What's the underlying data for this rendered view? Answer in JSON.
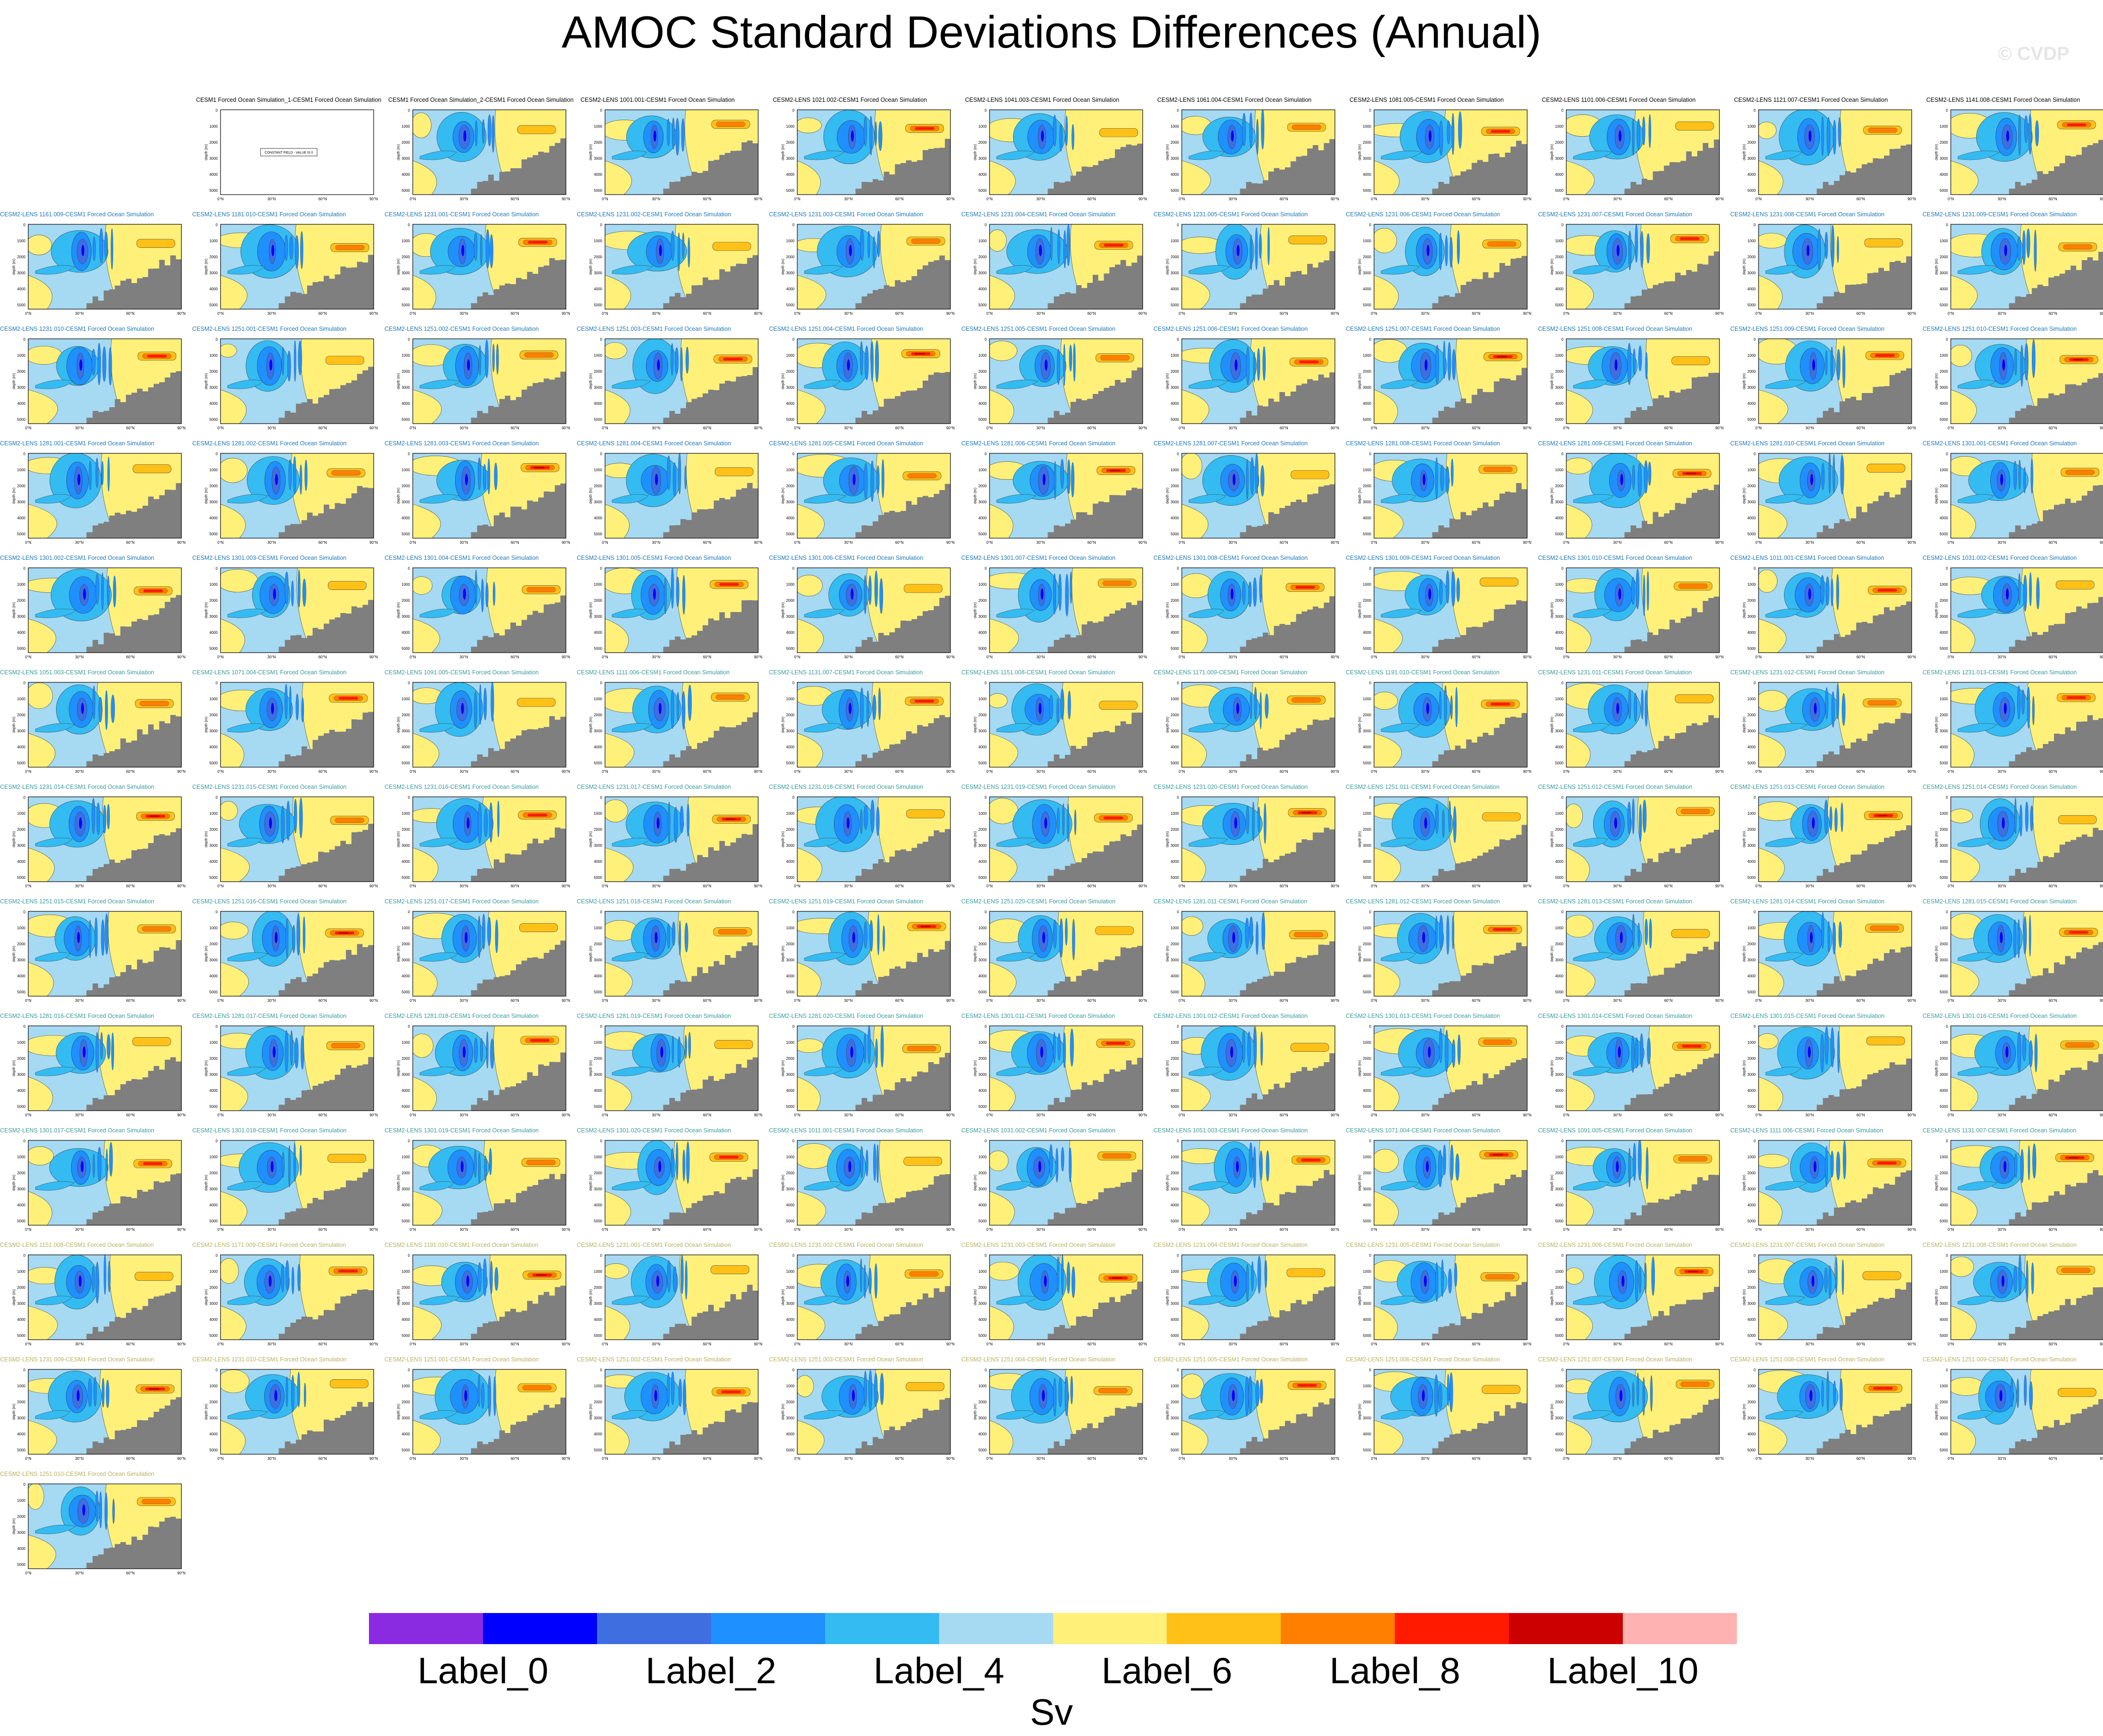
{
  "title": "AMOC Standard Deviations Differences (Annual)",
  "watermark": "© CVDP",
  "units": "Sv",
  "chart_data": {
    "type": "heatmap",
    "title": "AMOC Standard Deviations Differences (Annual)",
    "colorbar": {
      "units": "Sv",
      "colors": [
        "#8a2be2",
        "#0000ff",
        "#3e6ee0",
        "#1e90ff",
        "#33bbf2",
        "#a6d9f2",
        "#fff07a",
        "#ffc118",
        "#ff7f00",
        "#ff1a00",
        "#cc0000",
        "#ffb2b2"
      ],
      "labels": [
        {
          "text": "Label_0",
          "boundary": 1
        },
        {
          "text": "Label_2",
          "boundary": 3
        },
        {
          "text": "Label_4",
          "boundary": 5
        },
        {
          "text": "Label_6",
          "boundary": 7
        },
        {
          "text": "Label_8",
          "boundary": 9
        },
        {
          "text": "Label_10",
          "boundary": 11
        }
      ]
    },
    "panel_axes": {
      "ylabel": "depth (m)",
      "yticks": [
        "0",
        "1000",
        "2000",
        "3000",
        "4000",
        "5000"
      ],
      "xticks": [
        "0°N",
        "30°N",
        "60°N",
        "90°N"
      ]
    },
    "constant_panel_text": "CONSTANT FIELD - VALUE IS 0",
    "panels": [
      "",
      "CESM1 Forced Ocean Simulation_1-CESM1 Forced Ocean Simulation",
      "CESM1 Forced Ocean Simulation_2-CESM1 Forced Ocean Simulation",
      "CESM2-LENS 1001.001-CESM1 Forced Ocean Simulation",
      "CESM2-LENS 1021.002-CESM1 Forced Ocean Simulation",
      "CESM2-LENS 1041.003-CESM1 Forced Ocean Simulation",
      "CESM2-LENS 1061.004-CESM1 Forced Ocean Simulation",
      "CESM2-LENS 1081.005-CESM1 Forced Ocean Simulation",
      "CESM2-LENS 1101.006-CESM1 Forced Ocean Simulation",
      "CESM2-LENS 1121.007-CESM1 Forced Ocean Simulation",
      "CESM2-LENS 1141.008-CESM1 Forced Ocean Simulation",
      "CESM2-LENS 1161.009-CESM1 Forced Ocean Simulation",
      "CESM2-LENS 1181.010-CESM1 Forced Ocean Simulation",
      "CESM2-LENS 1231.001-CESM1 Forced Ocean Simulation",
      "CESM2-LENS 1231.002-CESM1 Forced Ocean Simulation",
      "CESM2-LENS 1231.003-CESM1 Forced Ocean Simulation",
      "CESM2-LENS 1231.004-CESM1 Forced Ocean Simulation",
      "CESM2-LENS 1231.005-CESM1 Forced Ocean Simulation",
      "CESM2-LENS 1231.006-CESM1 Forced Ocean Simulation",
      "CESM2-LENS 1231.007-CESM1 Forced Ocean Simulation",
      "CESM2-LENS 1231.008-CESM1 Forced Ocean Simulation",
      "CESM2-LENS 1231.009-CESM1 Forced Ocean Simulation",
      "CESM2-LENS 1231.010-CESM1 Forced Ocean Simulation",
      "CESM2-LENS 1251.001-CESM1 Forced Ocean Simulation",
      "CESM2-LENS 1251.002-CESM1 Forced Ocean Simulation",
      "CESM2-LENS 1251.003-CESM1 Forced Ocean Simulation",
      "CESM2-LENS 1251.004-CESM1 Forced Ocean Simulation",
      "CESM2-LENS 1251.005-CESM1 Forced Ocean Simulation",
      "CESM2-LENS 1251.006-CESM1 Forced Ocean Simulation",
      "CESM2-LENS 1251.007-CESM1 Forced Ocean Simulation",
      "CESM2-LENS 1251.008-CESM1 Forced Ocean Simulation",
      "CESM2-LENS 1251.009-CESM1 Forced Ocean Simulation",
      "CESM2-LENS 1251.010-CESM1 Forced Ocean Simulation",
      "CESM2-LENS 1281.001-CESM1 Forced Ocean Simulation",
      "CESM2-LENS 1281.002-CESM1 Forced Ocean Simulation",
      "CESM2-LENS 1281.003-CESM1 Forced Ocean Simulation",
      "CESM2-LENS 1281.004-CESM1 Forced Ocean Simulation",
      "CESM2-LENS 1281.005-CESM1 Forced Ocean Simulation",
      "CESM2-LENS 1281.006-CESM1 Forced Ocean Simulation",
      "CESM2-LENS 1281.007-CESM1 Forced Ocean Simulation",
      "CESM2-LENS 1281.008-CESM1 Forced Ocean Simulation",
      "CESM2-LENS 1281.009-CESM1 Forced Ocean Simulation",
      "CESM2-LENS 1281.010-CESM1 Forced Ocean Simulation",
      "CESM2-LENS 1301.001-CESM1 Forced Ocean Simulation",
      "CESM2-LENS 1301.002-CESM1 Forced Ocean Simulation",
      "CESM2-LENS 1301.003-CESM1 Forced Ocean Simulation",
      "CESM2-LENS 1301.004-CESM1 Forced Ocean Simulation",
      "CESM2-LENS 1301.005-CESM1 Forced Ocean Simulation",
      "CESM2-LENS 1301.006-CESM1 Forced Ocean Simulation",
      "CESM2-LENS 1301.007-CESM1 Forced Ocean Simulation",
      "CESM2-LENS 1301.008-CESM1 Forced Ocean Simulation",
      "CESM2-LENS 1301.009-CESM1 Forced Ocean Simulation",
      "CESM2-LENS 1301.010-CESM1 Forced Ocean Simulation",
      "CESM2-LENS 1011.001-CESM1 Forced Ocean Simulation",
      "CESM2-LENS 1031.002-CESM1 Forced Ocean Simulation",
      "CESM2-LENS 1051.003-CESM1 Forced Ocean Simulation",
      "CESM2-LENS 1071.004-CESM1 Forced Ocean Simulation",
      "CESM2-LENS 1091.005-CESM1 Forced Ocean Simulation",
      "CESM2-LENS 1111.006-CESM1 Forced Ocean Simulation",
      "CESM2-LENS 1131.007-CESM1 Forced Ocean Simulation",
      "CESM2-LENS 1151.008-CESM1 Forced Ocean Simulation",
      "CESM2-LENS 1171.009-CESM1 Forced Ocean Simulation",
      "CESM2-LENS 1191.010-CESM1 Forced Ocean Simulation",
      "CESM2-LENS 1231.011-CESM1 Forced Ocean Simulation",
      "CESM2-LENS 1231.012-CESM1 Forced Ocean Simulation",
      "CESM2-LENS 1231.013-CESM1 Forced Ocean Simulation",
      "CESM2-LENS 1231.014-CESM1 Forced Ocean Simulation",
      "CESM2-LENS 1231.015-CESM1 Forced Ocean Simulation",
      "CESM2-LENS 1231.016-CESM1 Forced Ocean Simulation",
      "CESM2-LENS 1231.017-CESM1 Forced Ocean Simulation",
      "CESM2-LENS 1231.018-CESM1 Forced Ocean Simulation",
      "CESM2-LENS 1231.019-CESM1 Forced Ocean Simulation",
      "CESM2-LENS 1231.020-CESM1 Forced Ocean Simulation",
      "CESM2-LENS 1251.011-CESM1 Forced Ocean Simulation",
      "CESM2-LENS 1251.012-CESM1 Forced Ocean Simulation",
      "CESM2-LENS 1251.013-CESM1 Forced Ocean Simulation",
      "CESM2-LENS 1251.014-CESM1 Forced Ocean Simulation",
      "CESM2-LENS 1251.015-CESM1 Forced Ocean Simulation",
      "CESM2-LENS 1251.016-CESM1 Forced Ocean Simulation",
      "CESM2-LENS 1251.017-CESM1 Forced Ocean Simulation",
      "CESM2-LENS 1251.018-CESM1 Forced Ocean Simulation",
      "CESM2-LENS 1251.019-CESM1 Forced Ocean Simulation",
      "CESM2-LENS 1251.020-CESM1 Forced Ocean Simulation",
      "CESM2-LENS 1281.011-CESM1 Forced Ocean Simulation",
      "CESM2-LENS 1281.012-CESM1 Forced Ocean Simulation",
      "CESM2-LENS 1281.013-CESM1 Forced Ocean Simulation",
      "CESM2-LENS 1281.014-CESM1 Forced Ocean Simulation",
      "CESM2-LENS 1281.015-CESM1 Forced Ocean Simulation",
      "CESM2-LENS 1281.016-CESM1 Forced Ocean Simulation",
      "CESM2-LENS 1281.017-CESM1 Forced Ocean Simulation",
      "CESM2-LENS 1281.018-CESM1 Forced Ocean Simulation",
      "CESM2-LENS 1281.019-CESM1 Forced Ocean Simulation",
      "CESM2-LENS 1281.020-CESM1 Forced Ocean Simulation",
      "CESM2-LENS 1301.011-CESM1 Forced Ocean Simulation",
      "CESM2-LENS 1301.012-CESM1 Forced Ocean Simulation",
      "CESM2-LENS 1301.013-CESM1 Forced Ocean Simulation",
      "CESM2-LENS 1301.014-CESM1 Forced Ocean Simulation",
      "CESM2-LENS 1301.015-CESM1 Forced Ocean Simulation",
      "CESM2-LENS 1301.016-CESM1 Forced Ocean Simulation",
      "CESM2-LENS 1301.017-CESM1 Forced Ocean Simulation",
      "CESM2-LENS 1301.018-CESM1 Forced Ocean Simulation",
      "CESM2-LENS 1301.019-CESM1 Forced Ocean Simulation",
      "CESM2-LENS 1301.020-CESM1 Forced Ocean Simulation",
      "CESM2-LENS 1011.001-CESM1 Forced Ocean Simulation",
      "CESM2-LENS 1031.002-CESM1 Forced Ocean Simulation",
      "CESM2-LENS 1051.003-CESM1 Forced Ocean Simulation",
      "CESM2-LENS 1071.004-CESM1 Forced Ocean Simulation",
      "CESM2-LENS 1091.005-CESM1 Forced Ocean Simulation",
      "CESM2-LENS 1111.006-CESM1 Forced Ocean Simulation",
      "CESM2-LENS 1131.007-CESM1 Forced Ocean Simulation",
      "CESM2-LENS 1151.008-CESM1 Forced Ocean Simulation",
      "CESM2-LENS 1171.009-CESM1 Forced Ocean Simulation",
      "CESM2-LENS 1191.010-CESM1 Forced Ocean Simulation",
      "CESM2-LENS 1231.001-CESM1 Forced Ocean Simulation",
      "CESM2-LENS 1231.002-CESM1 Forced Ocean Simulation",
      "CESM2-LENS 1231.003-CESM1 Forced Ocean Simulation",
      "CESM2-LENS 1231.004-CESM1 Forced Ocean Simulation",
      "CESM2-LENS 1231.005-CESM1 Forced Ocean Simulation",
      "CESM2-LENS 1231.006-CESM1 Forced Ocean Simulation",
      "CESM2-LENS 1231.007-CESM1 Forced Ocean Simulation",
      "CESM2-LENS 1231.008-CESM1 Forced Ocean Simulation",
      "CESM2-LENS 1231.009-CESM1 Forced Ocean Simulation",
      "CESM2-LENS 1231.010-CESM1 Forced Ocean Simulation",
      "CESM2-LENS 1251.001-CESM1 Forced Ocean Simulation",
      "CESM2-LENS 1251.002-CESM1 Forced Ocean Simulation",
      "CESM2-LENS 1251.003-CESM1 Forced Ocean Simulation",
      "CESM2-LENS 1251.004-CESM1 Forced Ocean Simulation",
      "CESM2-LENS 1251.005-CESM1 Forced Ocean Simulation",
      "CESM2-LENS 1251.006-CESM1 Forced Ocean Simulation",
      "CESM2-LENS 1251.007-CESM1 Forced Ocean Simulation",
      "CESM2-LENS 1251.008-CESM1 Forced Ocean Simulation",
      "CESM2-LENS 1251.009-CESM1 Forced Ocean Simulation",
      "CESM2-LENS 1251.010-CESM1 Forced Ocean Simulation"
    ],
    "panel_title_colors": {
      "rows_1_to_5": "#1f78b4",
      "rows_6_to_10": "#3a9a9a",
      "rows_11_to_13": "#b8b060",
      "first_row": "#000000"
    }
  }
}
